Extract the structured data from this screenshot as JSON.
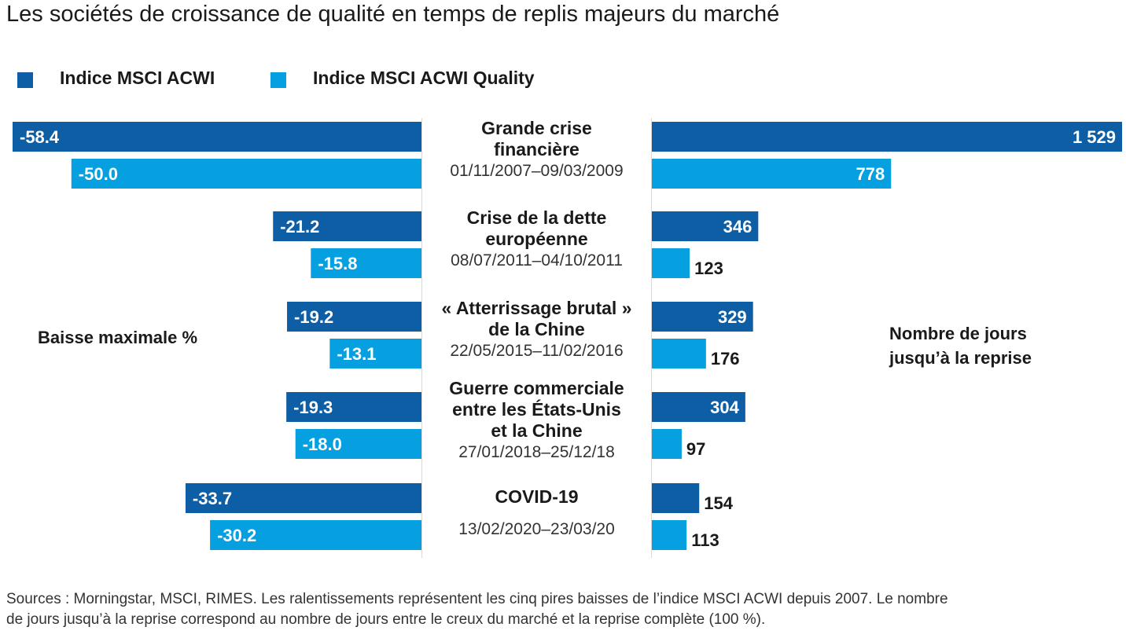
{
  "title": "Les sociétés de croissance de qualité en temps de replis majeurs du marché",
  "legend": [
    {
      "label": "Indice MSCI ACWI",
      "color": "#0d5ea4"
    },
    {
      "label": "Indice MSCI ACWI Quality",
      "color": "#069fe0"
    }
  ],
  "left_axis_label": "Baisse maximale %",
  "right_axis_label": [
    "Nombre de jours",
    "jusqu’à la reprise"
  ],
  "footer": [
    "Sources : Morningstar, MSCI, RIMES. Les ralentissements représentent les cinq pires baisses de l’indice MSCI ACWI depuis 2007. Le nombre",
    "de jours jusqu’à la reprise correspond au nombre de jours entre le creux du marché et la reprise complète (100 %)."
  ],
  "chart_data": {
    "type": "bar",
    "categories": [
      {
        "name": [
          "Grande crise",
          "financière"
        ],
        "dates": "01/11/2007–09/03/2009"
      },
      {
        "name": [
          "Crise de la dette",
          "européenne"
        ],
        "dates": "08/07/2011–04/10/2011"
      },
      {
        "name": [
          "« Atterrissage brutal »",
          "de la Chine"
        ],
        "dates": "22/05/2015–11/02/2016"
      },
      {
        "name": [
          "Guerre commerciale",
          "entre les États-Unis",
          "et la Chine"
        ],
        "dates": "27/01/2018–25/12/18"
      },
      {
        "name": [
          "COVID-19"
        ],
        "dates": "13/02/2020–23/03/20"
      }
    ],
    "drawdown": {
      "series": [
        {
          "name": "Indice MSCI ACWI",
          "values": [
            -58.4,
            -21.2,
            -19.2,
            -19.3,
            -33.7
          ],
          "labels": [
            "-58.4",
            "-21.2",
            "-19.2",
            "-19.3",
            "-33.7"
          ]
        },
        {
          "name": "Indice MSCI ACWI Quality",
          "values": [
            -50.0,
            -15.8,
            -13.1,
            -18.0,
            -30.2
          ],
          "labels": [
            "-50.0",
            "-15.8",
            "-13.1",
            "-18.0",
            "-30.2"
          ]
        }
      ]
    },
    "recovery_days": {
      "series": [
        {
          "name": "Indice MSCI ACWI",
          "values": [
            1529,
            346,
            329,
            304,
            154
          ],
          "labels": [
            "1 529",
            "346",
            "329",
            "304",
            "154"
          ]
        },
        {
          "name": "Indice MSCI ACWI Quality",
          "values": [
            778,
            123,
            176,
            97,
            113
          ],
          "labels": [
            "778",
            "123",
            "176",
            "97",
            "113"
          ]
        }
      ]
    }
  }
}
